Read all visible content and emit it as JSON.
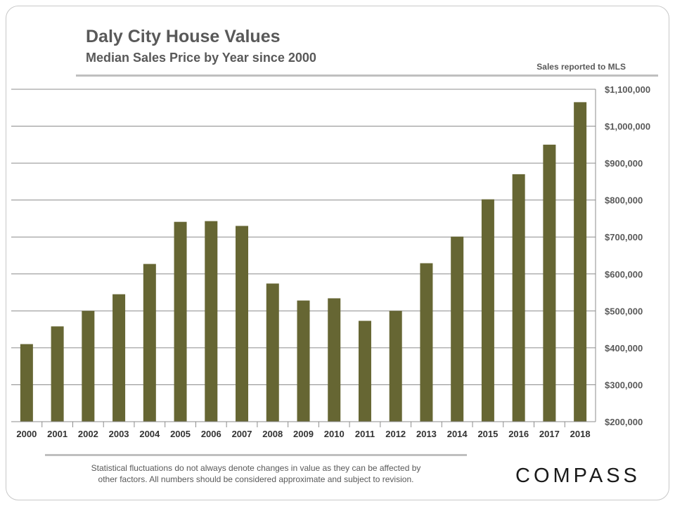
{
  "header": {
    "title": "Daly City House Values",
    "subtitle": "Median Sales Price by Year since 2000",
    "source_note": "Sales reported to MLS"
  },
  "footer": {
    "disclaimer_line1": "Statistical fluctuations do not always denote changes in value as they can be affected by",
    "disclaimer_line2": "other factors.  All numbers should be considered approximate and subject to revision.",
    "logo_text": "COMPASS"
  },
  "colors": {
    "bar": "#666633",
    "grid": "#8c8c8c",
    "text": "#595959"
  },
  "chart_data": {
    "type": "bar",
    "title": "",
    "xlabel": "",
    "ylabel": "",
    "categories": [
      "2000",
      "2001",
      "2002",
      "2003",
      "2004",
      "2005",
      "2006",
      "2007",
      "2008",
      "2009",
      "2010",
      "2011",
      "2012",
      "2013",
      "2014",
      "2015",
      "2016",
      "2017",
      "2018"
    ],
    "values": [
      410000,
      458000,
      500000,
      545000,
      627000,
      741000,
      743000,
      730000,
      574000,
      528000,
      534000,
      473000,
      500000,
      629000,
      701000,
      802000,
      870000,
      950000,
      1065000
    ],
    "ylim": [
      200000,
      1100000
    ],
    "y_ticks": [
      200000,
      300000,
      400000,
      500000,
      600000,
      700000,
      800000,
      900000,
      1000000,
      1100000
    ],
    "y_tick_labels": [
      "$200,000",
      "$300,000",
      "$400,000",
      "$500,000",
      "$600,000",
      "$700,000",
      "$800,000",
      "$900,000",
      "$1,000,000",
      "$1,100,000"
    ],
    "y_axis_side": "right",
    "grid": true,
    "legend": "none"
  }
}
